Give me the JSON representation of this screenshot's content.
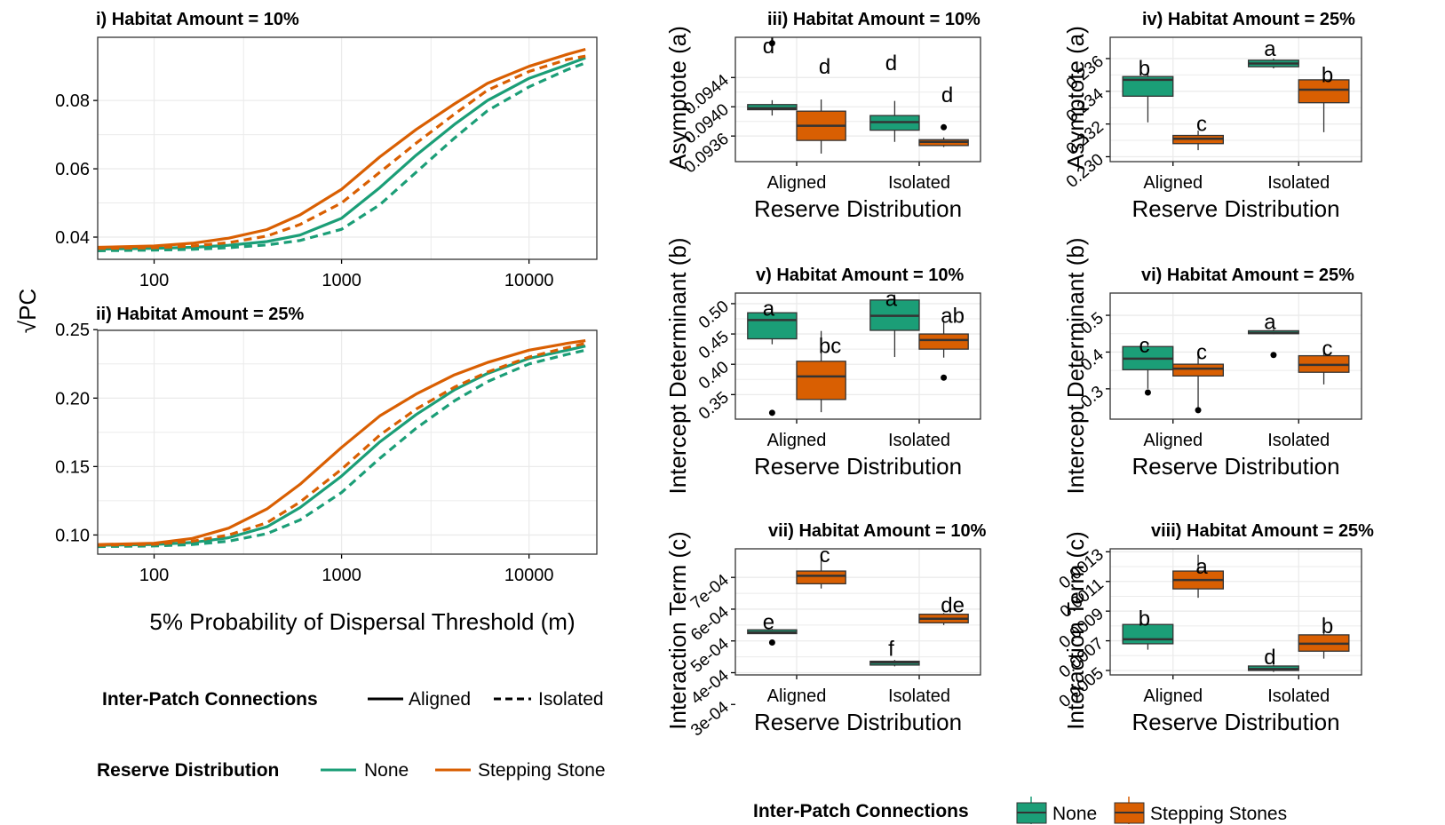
{
  "colors": {
    "none": "#1b9e77",
    "stepping": "#d95f02",
    "grid": "#ebebeb",
    "median": "#333333"
  },
  "shared": {
    "ylabel_left": "√PC",
    "xlabel_left": "5% Probability of Dispersal Threshold (m)",
    "box_xlabel": "Reserve Distribution",
    "box_categories": [
      "Aligned",
      "Isolated"
    ],
    "row_labels": [
      "Asymptote (a)",
      "Intercept Determinant (b)",
      "Interaction Term (c)"
    ]
  },
  "legends": {
    "left_line": {
      "title": "Inter-Patch Connections",
      "items": [
        "Aligned",
        "Isolated"
      ]
    },
    "left_color": {
      "title": "Reserve Distribution",
      "items": [
        "None",
        "Stepping Stone"
      ]
    },
    "right": {
      "title": "Inter-Patch Connections",
      "items": [
        "None",
        "Stepping Stones"
      ]
    }
  },
  "chart_data": [
    {
      "id": "p1",
      "type": "line",
      "title": "i) Habitat Amount = 10%",
      "xscale": "log",
      "xlim": [
        50,
        23000
      ],
      "ylim": [
        0.0335,
        0.0985
      ],
      "xticks": [
        100,
        1000,
        10000
      ],
      "xticklabels": [
        "100",
        "1000",
        "10000"
      ],
      "yticks": [
        0.04,
        0.06,
        0.08
      ],
      "yticklabels": [
        "0.04",
        "0.06",
        "0.08"
      ],
      "x": [
        50,
        100,
        160,
        250,
        400,
        600,
        1000,
        1600,
        2500,
        4000,
        6000,
        10000,
        16000,
        20000
      ],
      "series": [
        {
          "color": "none",
          "dash": "solid",
          "values": [
            0.0365,
            0.0367,
            0.037,
            0.0376,
            0.0387,
            0.0406,
            0.0455,
            0.0545,
            0.064,
            0.073,
            0.08,
            0.0865,
            0.0905,
            0.0925
          ]
        },
        {
          "color": "none",
          "dash": "dashed",
          "values": [
            0.036,
            0.0362,
            0.0364,
            0.0369,
            0.0377,
            0.039,
            0.0423,
            0.0495,
            0.059,
            0.069,
            0.077,
            0.084,
            0.089,
            0.091
          ]
        },
        {
          "color": "stepping",
          "dash": "solid",
          "values": [
            0.037,
            0.0374,
            0.0382,
            0.0397,
            0.0422,
            0.0465,
            0.054,
            0.0635,
            0.0715,
            0.079,
            0.085,
            0.09,
            0.0935,
            0.095
          ]
        },
        {
          "color": "stepping",
          "dash": "dashed",
          "values": [
            0.0367,
            0.0369,
            0.0374,
            0.0384,
            0.0403,
            0.0437,
            0.05,
            0.059,
            0.0675,
            0.076,
            0.083,
            0.0885,
            0.092,
            0.093
          ]
        }
      ]
    },
    {
      "id": "p2",
      "type": "line",
      "title": "ii) Habitat Amount = 25%",
      "xscale": "log",
      "xlim": [
        50,
        23000
      ],
      "ylim": [
        0.086,
        0.2495
      ],
      "xticks": [
        100,
        1000,
        10000
      ],
      "xticklabels": [
        "100",
        "1000",
        "10000"
      ],
      "yticks": [
        0.1,
        0.15,
        0.2,
        0.25
      ],
      "yticklabels": [
        "0.10",
        "0.15",
        "0.20",
        "0.25"
      ],
      "x": [
        50,
        100,
        160,
        250,
        400,
        600,
        1000,
        1600,
        2500,
        4000,
        6000,
        10000,
        16000,
        20000
      ],
      "series": [
        {
          "color": "none",
          "dash": "solid",
          "values": [
            0.0925,
            0.093,
            0.0945,
            0.098,
            0.106,
            0.12,
            0.143,
            0.168,
            0.188,
            0.206,
            0.218,
            0.229,
            0.235,
            0.238
          ]
        },
        {
          "color": "none",
          "dash": "dashed",
          "values": [
            0.0915,
            0.092,
            0.093,
            0.0955,
            0.101,
            0.111,
            0.131,
            0.156,
            0.178,
            0.198,
            0.212,
            0.225,
            0.232,
            0.235
          ]
        },
        {
          "color": "stepping",
          "dash": "solid",
          "values": [
            0.093,
            0.094,
            0.0975,
            0.105,
            0.119,
            0.137,
            0.164,
            0.187,
            0.203,
            0.217,
            0.226,
            0.235,
            0.24,
            0.242
          ]
        },
        {
          "color": "stepping",
          "dash": "dashed",
          "values": [
            0.0925,
            0.0932,
            0.0955,
            0.1,
            0.109,
            0.124,
            0.148,
            0.173,
            0.192,
            0.208,
            0.219,
            0.23,
            0.237,
            0.24
          ]
        }
      ]
    },
    {
      "id": "p3",
      "type": "box",
      "title": "iii) Habitat Amount = 10%",
      "ylim": [
        0.09325,
        0.09495
      ],
      "yticks": [
        0.0936,
        0.094,
        0.0944
      ],
      "yticklabels": [
        "0.0936",
        "0.0940",
        "0.0944"
      ],
      "boxes": [
        {
          "group": 0,
          "color": "none",
          "min": 0.09388,
          "q1": 0.09396,
          "median": 0.09398,
          "q3": 0.09403,
          "max": 0.09409,
          "outliers": [
            0.09487
          ],
          "letter": "d",
          "letter_y": 0.09483
        },
        {
          "group": 0,
          "color": "stepping",
          "min": 0.09336,
          "q1": 0.09354,
          "median": 0.09374,
          "q3": 0.09394,
          "max": 0.0941,
          "outliers": [],
          "letter": "d",
          "letter_y": 0.09455
        },
        {
          "group": 1,
          "color": "none",
          "min": 0.09352,
          "q1": 0.09368,
          "median": 0.09379,
          "q3": 0.09388,
          "max": 0.09408,
          "outliers": [],
          "letter": "d",
          "letter_y": 0.0946
        },
        {
          "group": 1,
          "color": "stepping",
          "min": 0.09345,
          "q1": 0.09347,
          "median": 0.09352,
          "q3": 0.09355,
          "max": 0.09358,
          "outliers": [
            0.09372
          ],
          "letter": "d",
          "letter_y": 0.09416
        }
      ]
    },
    {
      "id": "p4",
      "type": "box",
      "title": "iv) Habitat Amount = 25%",
      "ylim": [
        0.2297,
        0.2373
      ],
      "yticks": [
        0.23,
        0.232,
        0.234,
        0.236
      ],
      "yticklabels": [
        "0.230",
        "0.232",
        "0.234",
        "0.236"
      ],
      "boxes": [
        {
          "group": 0,
          "color": "none",
          "min": 0.2321,
          "q1": 0.2337,
          "median": 0.2347,
          "q3": 0.2349,
          "max": 0.2351,
          "outliers": [],
          "letter": "b",
          "letter_y": 0.2354
        },
        {
          "group": 0,
          "color": "stepping",
          "min": 0.2304,
          "q1": 0.2308,
          "median": 0.2311,
          "q3": 0.2313,
          "max": 0.2316,
          "outliers": [],
          "letter": "c",
          "letter_y": 0.232
        },
        {
          "group": 1,
          "color": "none",
          "min": 0.2354,
          "q1": 0.2355,
          "median": 0.2357,
          "q3": 0.2359,
          "max": 0.236,
          "outliers": [],
          "letter": "a",
          "letter_y": 0.2366
        },
        {
          "group": 1,
          "color": "stepping",
          "min": 0.2315,
          "q1": 0.2333,
          "median": 0.2341,
          "q3": 0.2347,
          "max": 0.2353,
          "outliers": [],
          "letter": "b",
          "letter_y": 0.235
        }
      ]
    },
    {
      "id": "p5",
      "type": "box",
      "title": "v) Habitat Amount = 10%",
      "ylim": [
        0.3095,
        0.5175
      ],
      "yticks": [
        0.35,
        0.4,
        0.45,
        0.5
      ],
      "yticklabels": [
        "0.35",
        "0.40",
        "0.45",
        "0.50"
      ],
      "boxes": [
        {
          "group": 0,
          "color": "none",
          "min": 0.433,
          "q1": 0.442,
          "median": 0.473,
          "q3": 0.485,
          "max": 0.492,
          "outliers": [
            0.32
          ],
          "letter": "a",
          "letter_y": 0.492
        },
        {
          "group": 0,
          "color": "stepping",
          "min": 0.321,
          "q1": 0.342,
          "median": 0.38,
          "q3": 0.405,
          "max": 0.455,
          "outliers": [],
          "letter": "bc",
          "letter_y": 0.43
        },
        {
          "group": 1,
          "color": "none",
          "min": 0.412,
          "q1": 0.456,
          "median": 0.48,
          "q3": 0.506,
          "max": 0.515,
          "outliers": [],
          "letter": "a",
          "letter_y": 0.508
        },
        {
          "group": 1,
          "color": "stepping",
          "min": 0.411,
          "q1": 0.425,
          "median": 0.44,
          "q3": 0.45,
          "max": 0.469,
          "outliers": [
            0.378
          ],
          "letter": "ab",
          "letter_y": 0.48
        }
      ]
    },
    {
      "id": "p6",
      "type": "box",
      "title": "vi) Habitat Amount = 25%",
      "ylim": [
        0.2175,
        0.5605
      ],
      "yticks": [
        0.3,
        0.4,
        0.5
      ],
      "yticklabels": [
        "0.3",
        "0.4",
        "0.5"
      ],
      "boxes": [
        {
          "group": 0,
          "color": "none",
          "min": 0.3,
          "q1": 0.352,
          "median": 0.382,
          "q3": 0.415,
          "max": 0.425,
          "outliers": [
            0.29
          ],
          "letter": "c",
          "letter_y": 0.418
        },
        {
          "group": 0,
          "color": "stepping",
          "min": 0.248,
          "q1": 0.335,
          "median": 0.355,
          "q3": 0.367,
          "max": 0.395,
          "outliers": [
            0.242
          ],
          "letter": "c",
          "letter_y": 0.4
        },
        {
          "group": 1,
          "color": "none",
          "min": 0.449,
          "q1": 0.45,
          "median": 0.452,
          "q3": 0.458,
          "max": 0.462,
          "outliers": [
            0.392
          ],
          "letter": "a",
          "letter_y": 0.482
        },
        {
          "group": 1,
          "color": "stepping",
          "min": 0.312,
          "q1": 0.345,
          "median": 0.365,
          "q3": 0.39,
          "max": 0.402,
          "outliers": [],
          "letter": "c",
          "letter_y": 0.41
        }
      ]
    },
    {
      "id": "p7",
      "type": "box",
      "title": "vii) Habitat Amount = 10%",
      "ylim": [
        0.000393,
        0.00079
      ],
      "yticks": [
        0.0003,
        0.0004,
        0.0005,
        0.0006,
        0.0007
      ],
      "yticklabels": [
        "3e-04",
        "4e-04",
        "5e-04",
        "6e-04",
        "7e-04"
      ],
      "boxes": [
        {
          "group": 0,
          "color": "none",
          "min": 0.000522,
          "q1": 0.000523,
          "median": 0.000527,
          "q3": 0.000535,
          "max": 0.000538,
          "outliers": [
            0.000495
          ],
          "letter": "e",
          "letter_y": 0.00056
        },
        {
          "group": 0,
          "color": "stepping",
          "min": 0.000665,
          "q1": 0.00068,
          "median": 0.000705,
          "q3": 0.00072,
          "max": 0.00077,
          "outliers": [],
          "letter": "c",
          "letter_y": 0.00077
        },
        {
          "group": 1,
          "color": "none",
          "min": 0.00042,
          "q1": 0.000424,
          "median": 0.000432,
          "q3": 0.000436,
          "max": 0.00044,
          "outliers": [],
          "letter": "f",
          "letter_y": 0.000475
        },
        {
          "group": 1,
          "color": "stepping",
          "min": 0.00055,
          "q1": 0.000557,
          "median": 0.00057,
          "q3": 0.000584,
          "max": 0.000588,
          "outliers": [],
          "letter": "de",
          "letter_y": 0.000612
        }
      ]
    },
    {
      "id": "p8",
      "type": "box",
      "title": "viii) Habitat Amount = 25%",
      "ylim": [
        0.00047,
        0.00132
      ],
      "yticks": [
        0.0005,
        0.0007,
        0.0009,
        0.0011,
        0.0013
      ],
      "yticklabels": [
        "0.0005",
        "0.0007",
        "0.0009",
        "0.0011",
        "0.0013"
      ],
      "boxes": [
        {
          "group": 0,
          "color": "none",
          "min": 0.00064,
          "q1": 0.00068,
          "median": 0.00071,
          "q3": 0.00081,
          "max": 0.00083,
          "outliers": [],
          "letter": "b",
          "letter_y": 0.00085
        },
        {
          "group": 0,
          "color": "stepping",
          "min": 0.00099,
          "q1": 0.00105,
          "median": 0.00111,
          "q3": 0.00117,
          "max": 0.00128,
          "outliers": [],
          "letter": "a",
          "letter_y": 0.0012
        },
        {
          "group": 1,
          "color": "none",
          "min": 0.00049,
          "q1": 0.0005,
          "median": 0.00051,
          "q3": 0.00053,
          "max": 0.00054,
          "outliers": [],
          "letter": "d",
          "letter_y": 0.00059
        },
        {
          "group": 1,
          "color": "stepping",
          "min": 0.00058,
          "q1": 0.00063,
          "median": 0.00068,
          "q3": 0.00074,
          "max": 0.00086,
          "outliers": [],
          "letter": "b",
          "letter_y": 0.0008
        }
      ]
    }
  ]
}
